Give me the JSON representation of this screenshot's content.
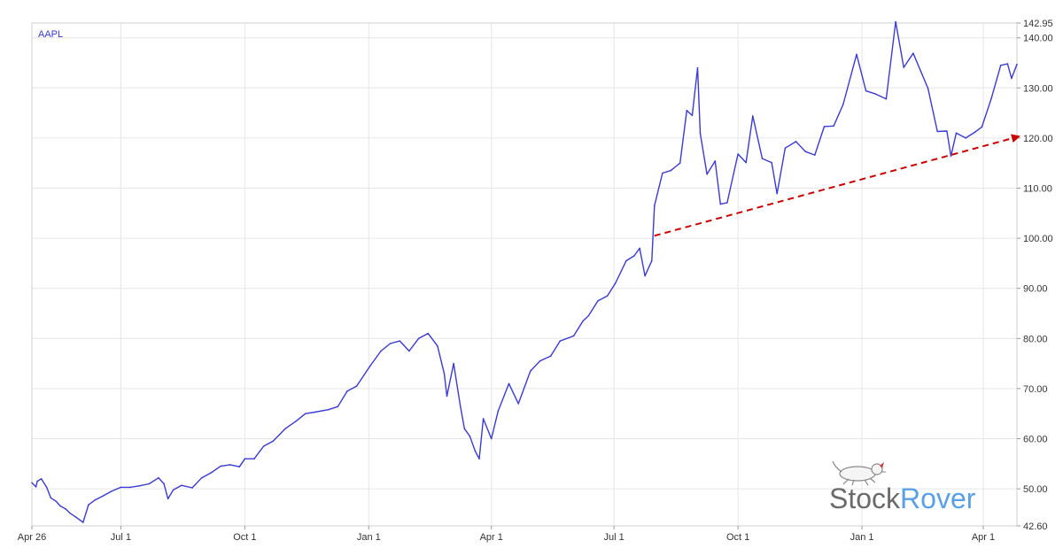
{
  "chart_data": {
    "type": "line",
    "series": [
      {
        "name": "AAPL",
        "color": "#3a3ad4",
        "points": [
          [
            "2019-04-26",
            51.2
          ],
          [
            "2019-04-29",
            50.4
          ],
          [
            "2019-04-30",
            51.5
          ],
          [
            "2019-05-03",
            52.0
          ],
          [
            "2019-05-07",
            50.3
          ],
          [
            "2019-05-10",
            48.2
          ],
          [
            "2019-05-14",
            47.5
          ],
          [
            "2019-05-17",
            46.6
          ],
          [
            "2019-05-21",
            46.0
          ],
          [
            "2019-05-24",
            45.2
          ],
          [
            "2019-05-29",
            44.3
          ],
          [
            "2019-06-03",
            43.3
          ],
          [
            "2019-06-07",
            46.8
          ],
          [
            "2019-06-12",
            47.8
          ],
          [
            "2019-06-18",
            48.6
          ],
          [
            "2019-06-24",
            49.5
          ],
          [
            "2019-07-01",
            50.3
          ],
          [
            "2019-07-08",
            50.3
          ],
          [
            "2019-07-15",
            50.6
          ],
          [
            "2019-07-22",
            51.0
          ],
          [
            "2019-07-29",
            52.2
          ],
          [
            "2019-08-02",
            51.0
          ],
          [
            "2019-08-05",
            48.0
          ],
          [
            "2019-08-09",
            49.8
          ],
          [
            "2019-08-15",
            50.7
          ],
          [
            "2019-08-23",
            50.2
          ],
          [
            "2019-08-30",
            52.2
          ],
          [
            "2019-09-06",
            53.2
          ],
          [
            "2019-09-13",
            54.5
          ],
          [
            "2019-09-20",
            54.8
          ],
          [
            "2019-09-27",
            54.4
          ],
          [
            "2019-10-01",
            56.0
          ],
          [
            "2019-10-08",
            56.0
          ],
          [
            "2019-10-15",
            58.5
          ],
          [
            "2019-10-22",
            59.5
          ],
          [
            "2019-10-31",
            62.0
          ],
          [
            "2019-11-08",
            63.5
          ],
          [
            "2019-11-15",
            65.0
          ],
          [
            "2019-11-22",
            65.3
          ],
          [
            "2019-12-02",
            65.8
          ],
          [
            "2019-12-09",
            66.4
          ],
          [
            "2019-12-16",
            69.5
          ],
          [
            "2019-12-23",
            70.5
          ],
          [
            "2020-01-02",
            74.5
          ],
          [
            "2020-01-10",
            77.5
          ],
          [
            "2020-01-17",
            79.0
          ],
          [
            "2020-01-24",
            79.5
          ],
          [
            "2020-01-31",
            77.5
          ],
          [
            "2020-02-07",
            80.0
          ],
          [
            "2020-02-14",
            81.0
          ],
          [
            "2020-02-21",
            78.5
          ],
          [
            "2020-02-26",
            73.0
          ],
          [
            "2020-02-28",
            68.5
          ],
          [
            "2020-03-04",
            75.0
          ],
          [
            "2020-03-09",
            66.5
          ],
          [
            "2020-03-12",
            62.0
          ],
          [
            "2020-03-16",
            60.5
          ],
          [
            "2020-03-20",
            57.5
          ],
          [
            "2020-03-23",
            56.0
          ],
          [
            "2020-03-26",
            64.0
          ],
          [
            "2020-04-01",
            60.0
          ],
          [
            "2020-04-06",
            65.5
          ],
          [
            "2020-04-14",
            71.0
          ],
          [
            "2020-04-21",
            67.0
          ],
          [
            "2020-04-30",
            73.5
          ],
          [
            "2020-05-07",
            75.5
          ],
          [
            "2020-05-15",
            76.5
          ],
          [
            "2020-05-22",
            79.5
          ],
          [
            "2020-06-01",
            80.5
          ],
          [
            "2020-06-08",
            83.5
          ],
          [
            "2020-06-12",
            84.5
          ],
          [
            "2020-06-19",
            87.5
          ],
          [
            "2020-06-26",
            88.5
          ],
          [
            "2020-07-02",
            91.0
          ],
          [
            "2020-07-10",
            95.5
          ],
          [
            "2020-07-16",
            96.5
          ],
          [
            "2020-07-20",
            98.0
          ],
          [
            "2020-07-24",
            92.5
          ],
          [
            "2020-07-29",
            95.5
          ],
          [
            "2020-07-31",
            106.5
          ],
          [
            "2020-08-06",
            113.0
          ],
          [
            "2020-08-12",
            113.5
          ],
          [
            "2020-08-19",
            115.0
          ],
          [
            "2020-08-24",
            125.5
          ],
          [
            "2020-08-28",
            124.5
          ],
          [
            "2020-09-01",
            134.0
          ],
          [
            "2020-09-03",
            120.9
          ],
          [
            "2020-09-08",
            112.8
          ],
          [
            "2020-09-14",
            115.4
          ],
          [
            "2020-09-18",
            106.8
          ],
          [
            "2020-09-23",
            107.1
          ],
          [
            "2020-10-01",
            116.8
          ],
          [
            "2020-10-07",
            115.1
          ],
          [
            "2020-10-12",
            124.4
          ],
          [
            "2020-10-19",
            115.9
          ],
          [
            "2020-10-26",
            115.1
          ],
          [
            "2020-10-30",
            108.9
          ],
          [
            "2020-11-05",
            118.0
          ],
          [
            "2020-11-13",
            119.3
          ],
          [
            "2020-11-20",
            117.3
          ],
          [
            "2020-11-27",
            116.6
          ],
          [
            "2020-12-04",
            122.3
          ],
          [
            "2020-12-11",
            122.4
          ],
          [
            "2020-12-18",
            126.7
          ],
          [
            "2020-12-28",
            136.7
          ],
          [
            "2021-01-04",
            129.4
          ],
          [
            "2021-01-11",
            128.8
          ],
          [
            "2021-01-19",
            127.8
          ],
          [
            "2021-01-26",
            143.2
          ],
          [
            "2021-02-01",
            134.1
          ],
          [
            "2021-02-08",
            136.9
          ],
          [
            "2021-02-19",
            129.9
          ],
          [
            "2021-02-26",
            121.3
          ],
          [
            "2021-03-05",
            121.4
          ],
          [
            "2021-03-08",
            116.4
          ],
          [
            "2021-03-12",
            121.0
          ],
          [
            "2021-03-19",
            120.0
          ],
          [
            "2021-03-26",
            121.2
          ],
          [
            "2021-03-31",
            122.2
          ],
          [
            "2021-04-07",
            127.9
          ],
          [
            "2021-04-14",
            134.5
          ],
          [
            "2021-04-19",
            134.8
          ],
          [
            "2021-04-22",
            131.9
          ],
          [
            "2021-04-26",
            134.7
          ]
        ]
      }
    ],
    "trendline": {
      "color": "#cc0000",
      "style": "dashed",
      "arrow": "end",
      "points": [
        [
          "2020-07-31",
          100.5
        ],
        [
          "2021-04-26",
          120.3
        ]
      ]
    },
    "x_ticks": [
      {
        "date": "2019-04-26",
        "label": "Apr 26"
      },
      {
        "date": "2019-07-01",
        "label": "Jul 1"
      },
      {
        "date": "2019-10-01",
        "label": "Oct 1"
      },
      {
        "date": "2020-01-01",
        "label": "Jan 1"
      },
      {
        "date": "2020-04-01",
        "label": "Apr 1"
      },
      {
        "date": "2020-07-01",
        "label": "Jul 1"
      },
      {
        "date": "2020-10-01",
        "label": "Oct 1"
      },
      {
        "date": "2021-01-01",
        "label": "Jan 1"
      },
      {
        "date": "2021-04-01",
        "label": "Apr 1"
      }
    ],
    "xlim": [
      "2019-04-26",
      "2021-04-26"
    ],
    "y_ticks": [
      "42.60",
      "50.00",
      "60.00",
      "70.00",
      "80.00",
      "90.00",
      "100.00",
      "110.00",
      "120.00",
      "130.00",
      "140.00",
      "142.95"
    ],
    "ylim": [
      42.6,
      142.95
    ],
    "y_axis_side": "right",
    "grid": true,
    "grid_color": "#e6e6e6"
  },
  "brand": {
    "name_part1": "Stock",
    "name_part2": "Rover",
    "color_part1": "#6b6b6b",
    "color_part2": "#5aa0e6",
    "icon": "dog-logo-icon"
  }
}
